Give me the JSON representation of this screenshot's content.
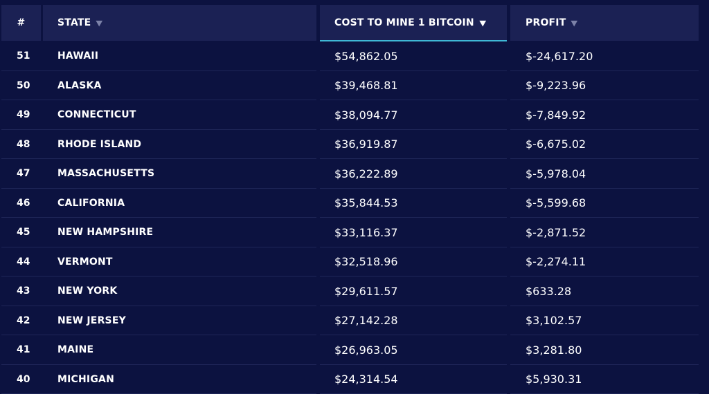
{
  "table": {
    "columns": {
      "rank": "#",
      "state": "STATE",
      "cost": "COST TO MINE 1 BITCOIN",
      "profit": "PROFIT"
    },
    "sort_icon": "▼",
    "active_sort_column": "cost",
    "colors": {
      "background": "#0c1240",
      "header_bg": "#1b2154",
      "active_underline": "#3fb8d6",
      "inactive_sort_arrow": "#7c82a8"
    },
    "rows": [
      {
        "rank": "51",
        "state": "HAWAII",
        "cost": "$54,862.05",
        "profit": "$-24,617.20"
      },
      {
        "rank": "50",
        "state": "ALASKA",
        "cost": "$39,468.81",
        "profit": "$-9,223.96"
      },
      {
        "rank": "49",
        "state": "CONNECTICUT",
        "cost": "$38,094.77",
        "profit": "$-7,849.92"
      },
      {
        "rank": "48",
        "state": "RHODE ISLAND",
        "cost": "$36,919.87",
        "profit": "$-6,675.02"
      },
      {
        "rank": "47",
        "state": "MASSACHUSETTS",
        "cost": "$36,222.89",
        "profit": "$-5,978.04"
      },
      {
        "rank": "46",
        "state": "CALIFORNIA",
        "cost": "$35,844.53",
        "profit": "$-5,599.68"
      },
      {
        "rank": "45",
        "state": "NEW HAMPSHIRE",
        "cost": "$33,116.37",
        "profit": "$-2,871.52"
      },
      {
        "rank": "44",
        "state": "VERMONT",
        "cost": "$32,518.96",
        "profit": "$-2,274.11"
      },
      {
        "rank": "43",
        "state": "NEW YORK",
        "cost": "$29,611.57",
        "profit": "$633.28"
      },
      {
        "rank": "42",
        "state": "NEW JERSEY",
        "cost": "$27,142.28",
        "profit": "$3,102.57"
      },
      {
        "rank": "41",
        "state": "MAINE",
        "cost": "$26,963.05",
        "profit": "$3,281.80"
      },
      {
        "rank": "40",
        "state": "MICHIGAN",
        "cost": "$24,314.54",
        "profit": "$5,930.31"
      }
    ]
  }
}
